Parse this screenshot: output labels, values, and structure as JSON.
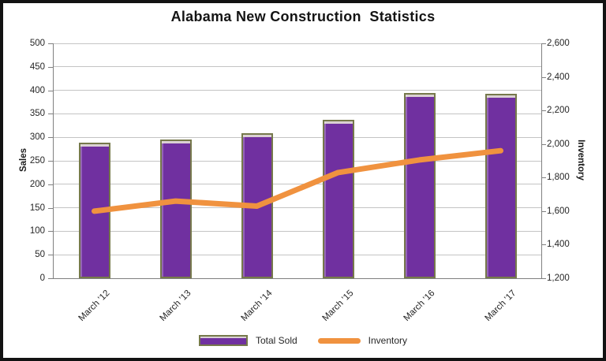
{
  "title": "Alabama New Construction  Statistics",
  "colors": {
    "bar_fill": "#7030A0",
    "bar_border": "#76794B",
    "line": "#F0923F",
    "gridline": "#C4C4C4",
    "axis_line": "#808080",
    "text": "#262626",
    "frame_border": "#121212",
    "background": "#FFFFFF"
  },
  "legend": {
    "items": [
      {
        "label": "Total Sold",
        "swatch": "purple-bar"
      },
      {
        "label": "Inventory",
        "swatch": "orange-line"
      }
    ]
  },
  "chart_data": {
    "type": "bar",
    "subtype": "combo-bar-line",
    "title": "Alabama New Construction  Statistics",
    "categories": [
      "March '12",
      "March '13",
      "March '14",
      "March '15",
      "March '16",
      "March '17"
    ],
    "series": [
      {
        "name": "Total Sold",
        "type": "bar",
        "axis": "left",
        "color": "#7030A0",
        "values": [
          288,
          296,
          309,
          337,
          395,
          393
        ]
      },
      {
        "name": "Inventory",
        "type": "line",
        "axis": "right",
        "color": "#F0923F",
        "values": [
          1600,
          1660,
          1630,
          1830,
          1905,
          1960
        ]
      }
    ],
    "left_axis": {
      "label": "Sales",
      "min": 0,
      "max": 500,
      "step": 50,
      "tick_labels": [
        "0",
        "50",
        "100",
        "150",
        "200",
        "250",
        "300",
        "350",
        "400",
        "450",
        "500"
      ]
    },
    "right_axis": {
      "label": "Inventory",
      "min": 1200,
      "max": 2600,
      "step": 200,
      "tick_labels": [
        "1,200",
        "1,400",
        "1,600",
        "1,800",
        "2,000",
        "2,200",
        "2,400",
        "2,600"
      ]
    },
    "grid": true,
    "legend_position": "bottom",
    "x_tick_rotation": -45
  }
}
